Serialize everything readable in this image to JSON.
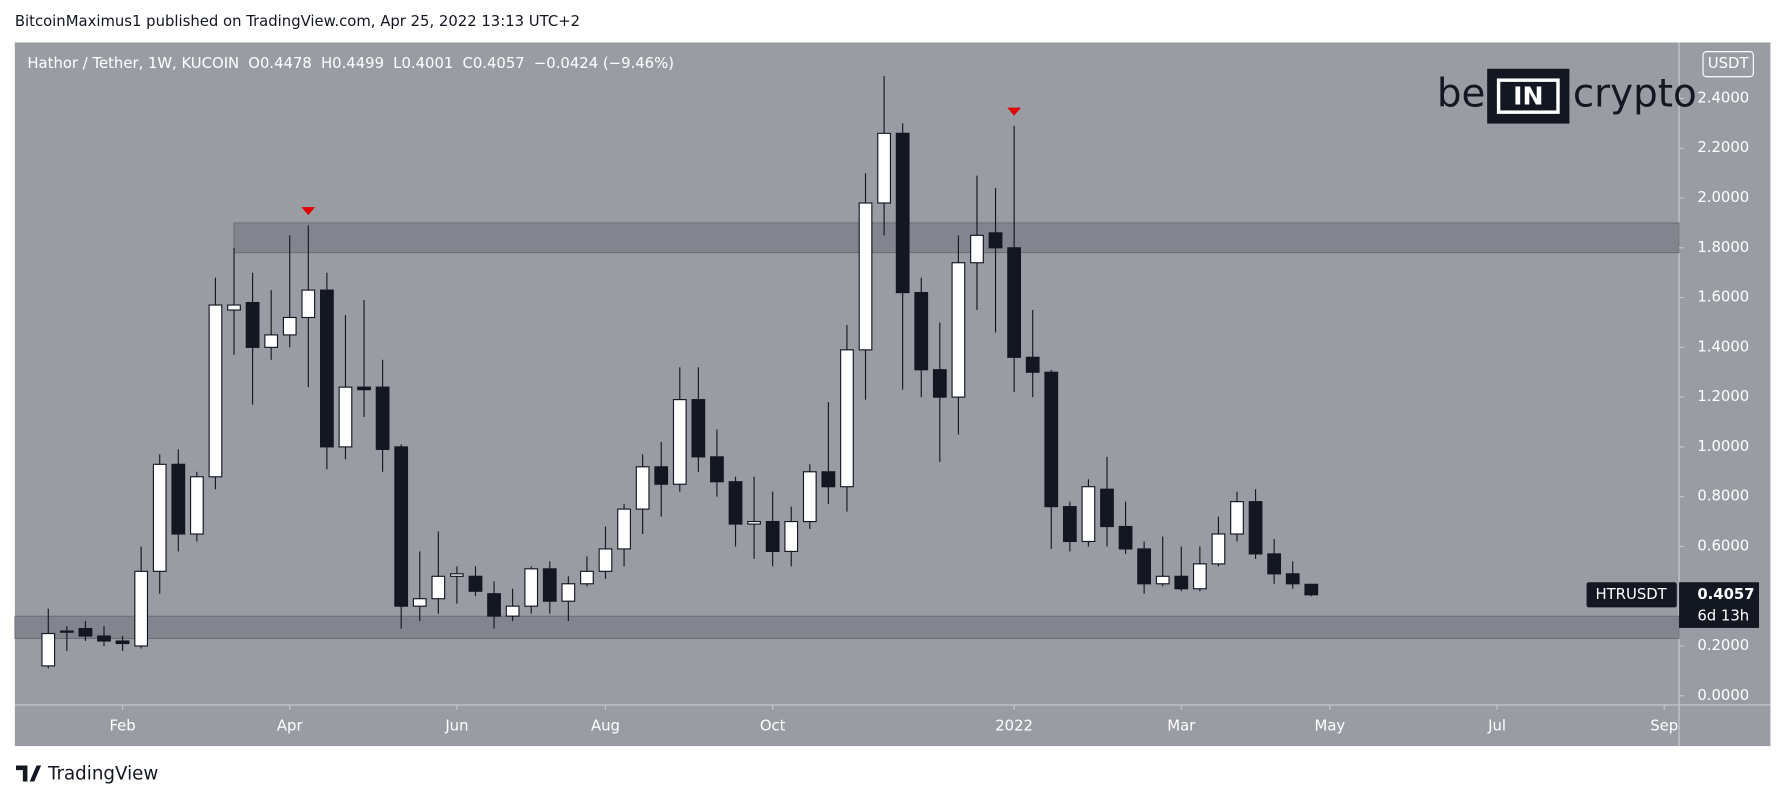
{
  "header": {
    "text": "BitcoinMaximus1 published on TradingView.com, Apr 25, 2022 13:13 UTC+2"
  },
  "chart_data": {
    "type": "candlestick",
    "title": "Hathor / Tether, 1W, KUCOIN",
    "legend": {
      "o": "O",
      "h": "H",
      "l": "L",
      "c": "C",
      "change": "−0.0424 (−9.46%)"
    },
    "open": [
      0.12,
      0.26,
      0.27,
      0.24,
      0.22,
      0.2,
      0.5,
      0.93,
      0.65,
      0.88,
      1.55,
      1.58,
      1.4,
      1.45,
      1.52,
      1.63,
      1.0,
      1.24,
      1.24,
      1.0,
      0.36,
      0.39,
      0.48,
      0.48,
      0.41,
      0.32,
      0.36,
      0.51,
      0.38,
      0.45,
      0.5,
      0.59,
      0.75,
      0.92,
      0.85,
      1.19,
      0.96,
      0.86,
      0.69,
      0.7,
      0.58,
      0.7,
      0.9,
      0.84,
      1.39,
      1.98,
      2.26,
      1.62,
      1.31,
      1.2,
      1.74,
      1.86,
      1.8,
      1.36,
      1.3,
      0.76,
      0.62,
      0.83,
      0.68,
      0.59,
      0.45,
      0.48,
      0.43,
      0.53,
      0.65,
      0.78,
      0.57,
      0.49,
      0.4478
    ],
    "high": [
      0.35,
      0.28,
      0.3,
      0.28,
      0.24,
      0.6,
      0.97,
      0.99,
      0.9,
      1.68,
      1.8,
      1.7,
      1.63,
      1.85,
      1.89,
      1.7,
      1.53,
      1.59,
      1.35,
      1.01,
      0.58,
      0.66,
      0.52,
      0.52,
      0.46,
      0.43,
      0.52,
      0.54,
      0.48,
      0.56,
      0.68,
      0.77,
      0.97,
      1.02,
      1.32,
      1.32,
      1.07,
      0.88,
      0.88,
      0.82,
      0.76,
      0.93,
      1.18,
      1.49,
      2.1,
      2.49,
      2.3,
      1.68,
      1.5,
      1.85,
      2.09,
      2.04,
      2.29,
      1.55,
      1.31,
      0.78,
      0.87,
      0.96,
      0.78,
      0.62,
      0.64,
      0.6,
      0.6,
      0.72,
      0.82,
      0.83,
      0.63,
      0.54,
      0.4499
    ],
    "low": [
      0.11,
      0.18,
      0.22,
      0.2,
      0.18,
      0.19,
      0.41,
      0.58,
      0.62,
      0.83,
      1.37,
      1.17,
      1.35,
      1.4,
      1.24,
      0.91,
      0.95,
      1.12,
      0.9,
      0.27,
      0.3,
      0.33,
      0.37,
      0.4,
      0.27,
      0.3,
      0.33,
      0.33,
      0.3,
      0.44,
      0.47,
      0.52,
      0.65,
      0.72,
      0.82,
      0.9,
      0.8,
      0.6,
      0.55,
      0.52,
      0.52,
      0.67,
      0.77,
      0.74,
      1.19,
      1.85,
      1.23,
      1.2,
      0.94,
      1.05,
      1.55,
      1.46,
      1.22,
      1.2,
      0.59,
      0.58,
      0.6,
      0.6,
      0.57,
      0.41,
      0.44,
      0.42,
      0.42,
      0.52,
      0.62,
      0.55,
      0.45,
      0.43,
      0.4001
    ],
    "close": [
      0.25,
      0.26,
      0.24,
      0.22,
      0.21,
      0.5,
      0.93,
      0.65,
      0.88,
      1.57,
      1.57,
      1.4,
      1.45,
      1.52,
      1.63,
      1.0,
      1.24,
      1.23,
      0.99,
      0.36,
      0.39,
      0.48,
      0.49,
      0.42,
      0.32,
      0.36,
      0.51,
      0.38,
      0.45,
      0.5,
      0.59,
      0.75,
      0.92,
      0.85,
      1.19,
      0.96,
      0.86,
      0.69,
      0.7,
      0.58,
      0.7,
      0.9,
      0.84,
      1.39,
      1.98,
      2.26,
      1.62,
      1.31,
      1.2,
      1.74,
      1.85,
      1.8,
      1.36,
      1.3,
      0.76,
      0.62,
      0.84,
      0.68,
      0.59,
      0.45,
      0.48,
      0.43,
      0.53,
      0.65,
      0.78,
      0.57,
      0.49,
      0.45,
      0.4057
    ],
    "up_color": "#ffffff",
    "down_color": "#131722",
    "xlim": [
      -1.8,
      87.8
    ],
    "xticks": [
      {
        "value": 4,
        "label": "Feb"
      },
      {
        "value": 13,
        "label": "Apr"
      },
      {
        "value": 22,
        "label": "Jun"
      },
      {
        "value": 30,
        "label": "Aug"
      },
      {
        "value": 39,
        "label": "Oct"
      },
      {
        "value": 52,
        "label": "2022"
      },
      {
        "value": 61,
        "label": "Mar"
      },
      {
        "value": 69,
        "label": "May"
      },
      {
        "value": 78,
        "label": "Jul"
      },
      {
        "value": 87,
        "label": "Sep"
      }
    ],
    "ylim": [
      -0.037,
      2.625
    ],
    "yticks": [
      {
        "value": 0,
        "label": "0.0000"
      },
      {
        "value": 0.2,
        "label": "0.2000"
      },
      {
        "value": 0.4,
        "label": "0.4000"
      },
      {
        "value": 0.6,
        "label": "0.6000"
      },
      {
        "value": 0.8,
        "label": "0.8000"
      },
      {
        "value": 1,
        "label": "1.0000"
      },
      {
        "value": 1.2,
        "label": "1.2000"
      },
      {
        "value": 1.4,
        "label": "1.4000"
      },
      {
        "value": 1.6,
        "label": "1.6000"
      },
      {
        "value": 1.8,
        "label": "1.8000"
      },
      {
        "value": 2,
        "label": "2.0000"
      },
      {
        "value": 2.2,
        "label": "2.2000"
      },
      {
        "value": 2.4,
        "label": "2.4000"
      }
    ],
    "zones": [
      {
        "from": 10,
        "y": [
          1.78,
          1.9
        ]
      },
      {
        "y": [
          0.23,
          0.32
        ]
      }
    ],
    "markers": [
      14,
      52
    ],
    "marker_color": "#e00000",
    "symbol": "HTRUSDT",
    "countdown": "6d 13h",
    "currency": "USDT"
  },
  "logo": {
    "left": "be",
    "mid": "IN",
    "right": "crypto"
  },
  "footer": {
    "brand": "TradingView"
  }
}
